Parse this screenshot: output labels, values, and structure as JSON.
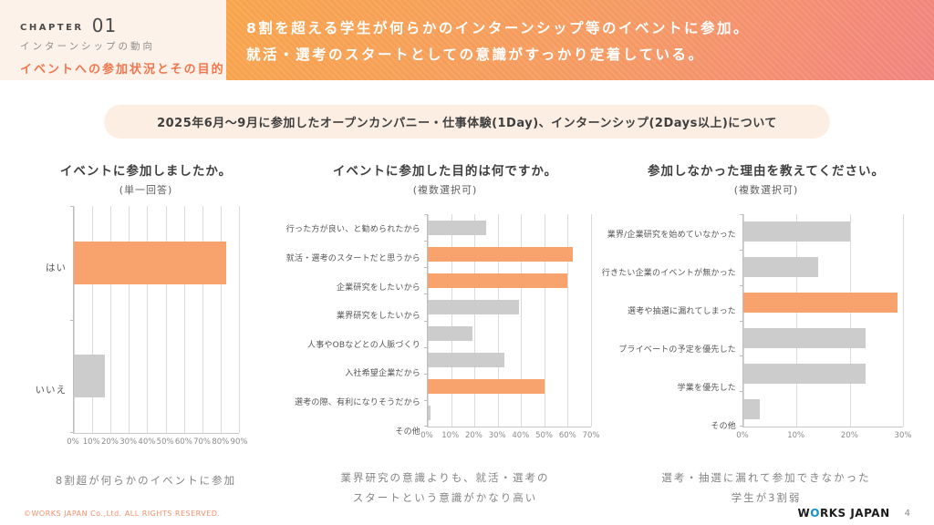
{
  "header": {
    "chapter_label": "CHAPTER",
    "chapter_number": "01",
    "chapter_subtitle": "インターンシップの動向",
    "section_title": "イベントへの参加状況とその目的",
    "headline_line1": "8割を超える学生が何らかのインターンシップ等のイベントに参加。",
    "headline_line2": "就活・選考のスタートとしての意識がすっかり定着している。"
  },
  "subject_banner": "2025年6月〜9月に参加したオープンカンパニー・仕事体験(1Day)、インターンシップ(2Days以上)について",
  "colors": {
    "accent_orange": "#f8a36e",
    "bar_gray": "#cccccc",
    "banner_gradient_start": "#f8a54c",
    "banner_gradient_end": "#f28380",
    "section_title_orange": "#f0764e"
  },
  "chart_data": [
    {
      "type": "bar",
      "orientation": "horizontal",
      "title": "イベントに参加しましたか。",
      "subtitle": "(単一回答)",
      "categories": [
        "はい",
        "いいえ"
      ],
      "values": [
        83,
        17
      ],
      "bar_colors": [
        "orange",
        "gray"
      ],
      "xlim": [
        0,
        90
      ],
      "ticks": [
        "0%",
        "10%",
        "20%",
        "30%",
        "40%",
        "50%",
        "60%",
        "70%",
        "80%",
        "90%"
      ],
      "grid": true,
      "caption": [
        "8割超が何らかのイベントに参加"
      ]
    },
    {
      "type": "bar",
      "orientation": "horizontal",
      "title": "イベントに参加した目的は何ですか。",
      "subtitle": "(複数選択可)",
      "categories": [
        "行った方が良い、と勧められたから",
        "就活・選考のスタートだと思うから",
        "企業研究をしたいから",
        "業界研究をしたいから",
        "人事やOBなどとの人脈づくり",
        "入社希望企業だから",
        "選考の際、有利になりそうだから",
        "その他"
      ],
      "values": [
        25,
        62,
        60,
        39,
        19,
        33,
        50,
        1
      ],
      "bar_colors": [
        "gray",
        "orange",
        "orange",
        "gray",
        "gray",
        "gray",
        "orange",
        "gray"
      ],
      "xlim": [
        0,
        70
      ],
      "ticks": [
        "0%",
        "10%",
        "20%",
        "30%",
        "40%",
        "50%",
        "60%",
        "70%"
      ],
      "grid": true,
      "caption": [
        "業界研究の意識よりも、就活・選考の",
        "スタートという意識がかなり高い"
      ]
    },
    {
      "type": "bar",
      "orientation": "horizontal",
      "title": "参加しなかった理由を教えてください。",
      "subtitle": "(複数選択可)",
      "categories": [
        "業界/企業研究を始めていなかった",
        "行きたい企業のイベントが無かった",
        "選考や抽選に漏れてしまった",
        "プライベートの予定を優先した",
        "学業を優先した",
        "その他"
      ],
      "values": [
        20,
        14,
        29,
        23,
        23,
        3
      ],
      "bar_colors": [
        "gray",
        "gray",
        "orange",
        "gray",
        "gray",
        "gray"
      ],
      "xlim": [
        0,
        30
      ],
      "ticks": [
        "0%",
        "10%",
        "20%",
        "30%"
      ],
      "grid": true,
      "caption": [
        "選考・抽選に漏れて参加できなかった",
        "学生が3割弱"
      ]
    }
  ],
  "footer": {
    "copyright": "©WORKS JAPAN Co.,Ltd. ALL RIGHTS RESERVED.",
    "logo_part1": "W",
    "logo_o": "O",
    "logo_part2": "RKS JAPAN",
    "page_number": "4"
  }
}
